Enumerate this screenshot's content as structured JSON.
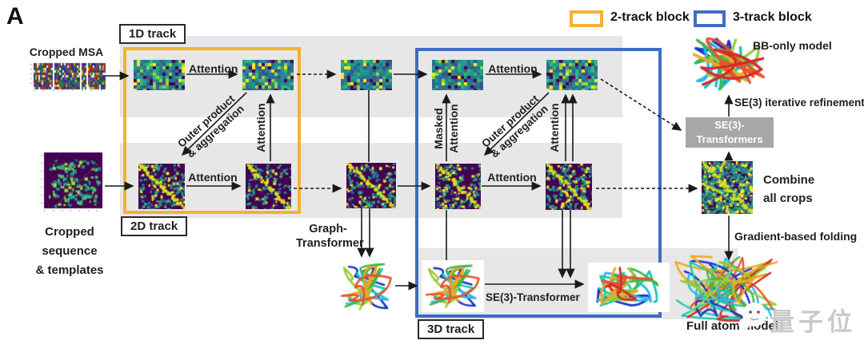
{
  "panel_label": "A",
  "legend": {
    "two_track": {
      "label": "2-track block"
    },
    "three_track": {
      "label": "3-track block"
    }
  },
  "inputs": {
    "msa_label": "Cropped MSA",
    "seq_label_line1": "Cropped",
    "seq_label_line2": "sequence",
    "seq_label_line3": "& templates"
  },
  "tracks": {
    "one_d": "1D track",
    "two_d": "2D track",
    "three_d": "3D track"
  },
  "labels": {
    "attention": "Attention",
    "masked": "Masked",
    "outer_product_line1": "Outer product",
    "outer_product_line2": "& aggregation",
    "graph_transformer_line1": "Graph-",
    "graph_transformer_line2": "Transformer",
    "se3_transformer_arrow": "SE(3)-Transformer",
    "se3_box_line1": "SE(3)-",
    "se3_box_line2": "Transformers",
    "se3_refinement": "SE(3) iterative refinement",
    "bb_only_model": "BB-only model",
    "combine_line1": "Combine",
    "combine_line2": "all crops",
    "gradient_folding": "Gradient-based folding",
    "full_atom_model": "Full atom model"
  },
  "watermark": {
    "text": "量子位"
  },
  "colors": {
    "two_track_border": "#F2B233",
    "three_track_border": "#3D6EC0",
    "band": "#E7E7E7",
    "se3_box_bg": "#A7A7A7",
    "heat_dark": "#440154",
    "heat_diag": "#D0E11C"
  }
}
